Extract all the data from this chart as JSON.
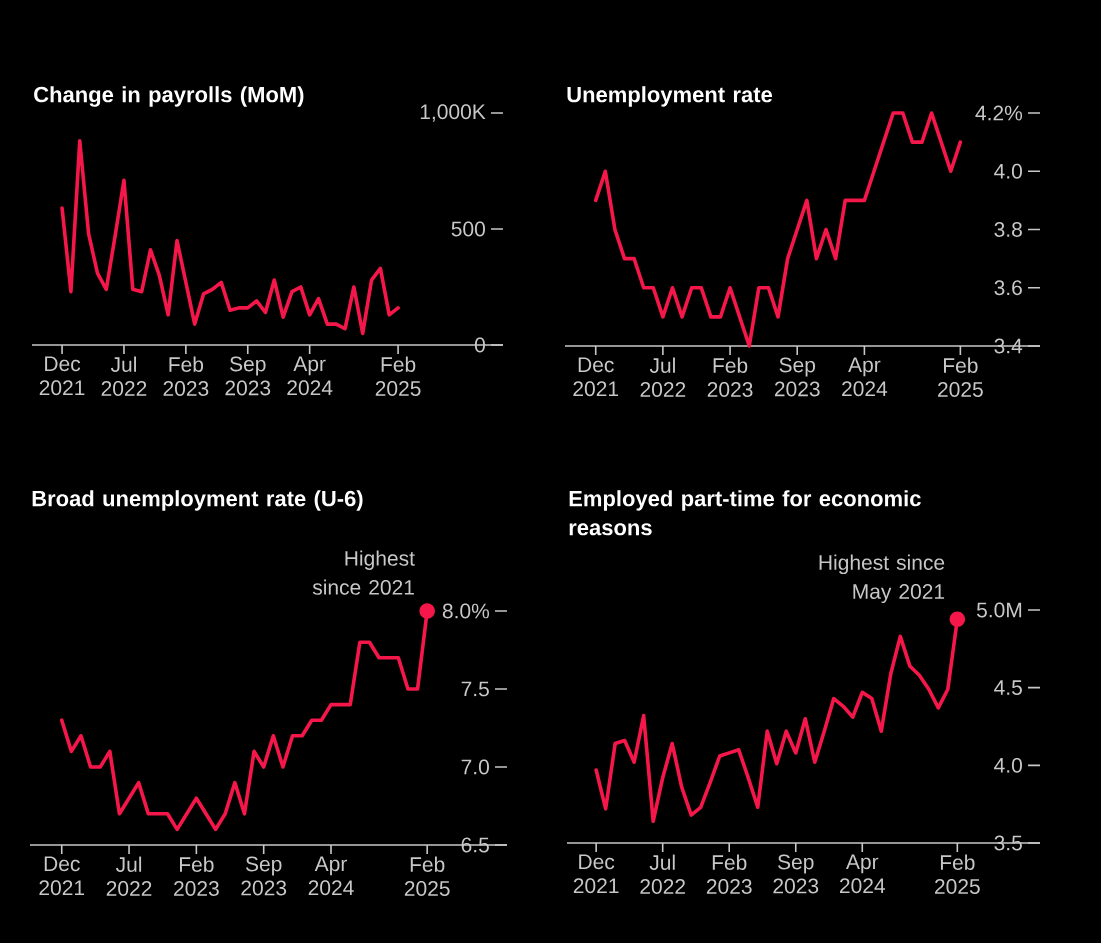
{
  "chart_data": [
    {
      "type": "line",
      "title": "Change in payrolls (MoM)",
      "x": [
        "2021-12",
        "2022-01",
        "2022-02",
        "2022-03",
        "2022-04",
        "2022-05",
        "2022-06",
        "2022-07",
        "2022-08",
        "2022-09",
        "2022-10",
        "2022-11",
        "2022-12",
        "2023-01",
        "2023-02",
        "2023-03",
        "2023-04",
        "2023-05",
        "2023-06",
        "2023-07",
        "2023-08",
        "2023-09",
        "2023-10",
        "2023-11",
        "2023-12",
        "2024-01",
        "2024-02",
        "2024-03",
        "2024-04",
        "2024-05",
        "2024-06",
        "2024-07",
        "2024-08",
        "2024-09",
        "2024-10",
        "2024-11",
        "2024-12",
        "2025-01",
        "2025-02"
      ],
      "series": [
        {
          "color": "#f5174a",
          "values": [
            590,
            230,
            880,
            480,
            310,
            240,
            470,
            710,
            240,
            230,
            410,
            300,
            130,
            450,
            270,
            90,
            220,
            240,
            270,
            150,
            160,
            160,
            190,
            140,
            280,
            120,
            230,
            250,
            130,
            200,
            90,
            90,
            70,
            250,
            50,
            280,
            330,
            130,
            160
          ]
        }
      ],
      "xlim": [
        "2021-08-19",
        "2026-01-27"
      ],
      "ylim": [
        0,
        1000
      ],
      "xticks": [
        {
          "value": "2021-12",
          "label": "Dec 2021"
        },
        {
          "value": "2022-07",
          "label": "Jul 2022"
        },
        {
          "value": "2023-02",
          "label": "Feb 2023"
        },
        {
          "value": "2023-09",
          "label": "Sep 2023"
        },
        {
          "value": "2024-04",
          "label": "Apr 2024"
        },
        {
          "value": "2025-02",
          "label": "Feb 2025"
        }
      ],
      "yticks": [
        0,
        500,
        {
          "value": 1000,
          "label": "1,000K"
        }
      ]
    },
    {
      "type": "line",
      "title": "Unemployment rate",
      "x": [
        "2021-12",
        "2022-01",
        "2022-02",
        "2022-03",
        "2022-04",
        "2022-05",
        "2022-06",
        "2022-07",
        "2022-08",
        "2022-09",
        "2022-10",
        "2022-11",
        "2022-12",
        "2023-01",
        "2023-02",
        "2023-03",
        "2023-04",
        "2023-05",
        "2023-06",
        "2023-07",
        "2023-08",
        "2023-09",
        "2023-10",
        "2023-11",
        "2023-12",
        "2024-01",
        "2024-02",
        "2024-03",
        "2024-04",
        "2024-05",
        "2024-06",
        "2024-07",
        "2024-08",
        "2024-09",
        "2024-10",
        "2024-11",
        "2024-12",
        "2025-01",
        "2025-02"
      ],
      "series": [
        {
          "color": "#f5174a",
          "values": [
            3.9,
            4.0,
            3.8,
            3.7,
            3.7,
            3.6,
            3.6,
            3.5,
            3.6,
            3.5,
            3.6,
            3.6,
            3.5,
            3.5,
            3.6,
            3.5,
            3.4,
            3.6,
            3.6,
            3.5,
            3.7,
            3.8,
            3.9,
            3.7,
            3.8,
            3.7,
            3.9,
            3.9,
            3.9,
            4.0,
            4.1,
            4.2,
            4.2,
            4.1,
            4.1,
            4.2,
            4.1,
            4.0,
            4.1
          ]
        }
      ],
      "xlim": [
        "2021-08-25",
        "2025-10-10"
      ],
      "ylim": [
        3.4,
        4.2
      ],
      "xticks": [
        {
          "value": "2021-12",
          "label": "Dec 2021"
        },
        {
          "value": "2022-07",
          "label": "Jul 2022"
        },
        {
          "value": "2023-02",
          "label": "Feb 2023"
        },
        {
          "value": "2023-09",
          "label": "Sep 2023"
        },
        {
          "value": "2024-04",
          "label": "Apr 2024"
        },
        {
          "value": "2025-02",
          "label": "Feb 2025"
        }
      ],
      "yticks": [
        {
          "value": 3.4,
          "label": "3.4"
        },
        {
          "value": 3.6,
          "label": "3.6"
        },
        {
          "value": 3.8,
          "label": "3.8"
        },
        {
          "value": 4.0,
          "label": "4.0"
        },
        {
          "value": 4.2,
          "label": "4.2%"
        }
      ]
    },
    {
      "type": "line",
      "title": "Broad unemployment rate (U-6)",
      "x": [
        "2021-12",
        "2022-01",
        "2022-02",
        "2022-03",
        "2022-04",
        "2022-05",
        "2022-06",
        "2022-07",
        "2022-08",
        "2022-09",
        "2022-10",
        "2022-11",
        "2022-12",
        "2023-01",
        "2023-02",
        "2023-03",
        "2023-04",
        "2023-05",
        "2023-06",
        "2023-07",
        "2023-08",
        "2023-09",
        "2023-10",
        "2023-11",
        "2023-12",
        "2024-01",
        "2024-02",
        "2024-03",
        "2024-04",
        "2024-05",
        "2024-06",
        "2024-07",
        "2024-08",
        "2024-09",
        "2024-10",
        "2024-11",
        "2024-12",
        "2025-01",
        "2025-02"
      ],
      "series": [
        {
          "color": "#f5174a",
          "values": [
            7.3,
            7.1,
            7.2,
            7.0,
            7.0,
            7.1,
            6.7,
            6.8,
            6.9,
            6.7,
            6.7,
            6.7,
            6.6,
            6.7,
            6.8,
            6.7,
            6.6,
            6.7,
            6.9,
            6.7,
            7.1,
            7.0,
            7.2,
            7.0,
            7.2,
            7.2,
            7.3,
            7.3,
            7.4,
            7.4,
            7.4,
            7.8,
            7.8,
            7.7,
            7.7,
            7.7,
            7.5,
            7.5,
            8.0
          ]
        },
        {
          "type": "scatter",
          "color": "#f5174a",
          "marker": "circle",
          "x": [
            "2025-02"
          ],
          "values": [
            8.0
          ]
        }
      ],
      "xlim": [
        "2021-08-22",
        "2025-10-10"
      ],
      "ylim": [
        6.5,
        8.0
      ],
      "xticks": [
        {
          "value": "2021-12",
          "label": "Dec 2021"
        },
        {
          "value": "2022-07",
          "label": "Jul 2022"
        },
        {
          "value": "2023-02",
          "label": "Feb 2023"
        },
        {
          "value": "2023-09",
          "label": "Sep 2023"
        },
        {
          "value": "2024-04",
          "label": "Apr 2024"
        },
        {
          "value": "2025-02",
          "label": "Feb 2025"
        }
      ],
      "yticks": [
        {
          "value": 6.5,
          "label": "6.5"
        },
        {
          "value": 7.0,
          "label": "7.0"
        },
        {
          "value": 7.5,
          "label": "7.5"
        },
        {
          "value": 8.0,
          "label": "8.0%"
        }
      ],
      "annotations": [
        {
          "text": "Highest since 2021",
          "x": "2025-02",
          "y": 8.0
        }
      ]
    },
    {
      "type": "line",
      "title": "Employed part-time for economic reasons",
      "x": [
        "2021-12",
        "2022-01",
        "2022-02",
        "2022-03",
        "2022-04",
        "2022-05",
        "2022-06",
        "2022-07",
        "2022-08",
        "2022-09",
        "2022-10",
        "2022-11",
        "2022-12",
        "2023-01",
        "2023-02",
        "2023-03",
        "2023-04",
        "2023-05",
        "2023-06",
        "2023-07",
        "2023-08",
        "2023-09",
        "2023-10",
        "2023-11",
        "2023-12",
        "2024-01",
        "2024-02",
        "2024-03",
        "2024-04",
        "2024-05",
        "2024-06",
        "2024-07",
        "2024-08",
        "2024-09",
        "2024-10",
        "2024-11",
        "2024-12",
        "2025-01",
        "2025-02"
      ],
      "series": [
        {
          "color": "#f5174a",
          "values": [
            3.97,
            3.72,
            4.14,
            4.16,
            4.02,
            4.32,
            3.64,
            3.92,
            4.14,
            3.86,
            3.68,
            3.73,
            3.89,
            4.06,
            4.08,
            4.1,
            3.92,
            3.73,
            4.22,
            4.01,
            4.22,
            4.08,
            4.3,
            4.02,
            4.22,
            4.43,
            4.38,
            4.31,
            4.47,
            4.43,
            4.22,
            4.59,
            4.83,
            4.64,
            4.58,
            4.49,
            4.37,
            4.49,
            4.94
          ]
        },
        {
          "type": "scatter",
          "color": "#f5174a",
          "marker": "circle",
          "x": [
            "2025-02"
          ],
          "values": [
            4.94
          ]
        }
      ],
      "xlim": [
        "2021-08-29",
        "2025-10-22"
      ],
      "ylim": [
        3.5,
        5.0
      ],
      "xticks": [
        {
          "value": "2021-12",
          "label": "Dec 2021"
        },
        {
          "value": "2022-07",
          "label": "Jul 2022"
        },
        {
          "value": "2023-02",
          "label": "Feb 2023"
        },
        {
          "value": "2023-09",
          "label": "Sep 2023"
        },
        {
          "value": "2024-04",
          "label": "Apr 2024"
        },
        {
          "value": "2025-02",
          "label": "Feb 2025"
        }
      ],
      "yticks": [
        {
          "value": 3.5,
          "label": "3.5"
        },
        {
          "value": 4.0,
          "label": "4.0"
        },
        {
          "value": 4.5,
          "label": "4.5"
        },
        {
          "value": 5.0,
          "label": "5.0M"
        }
      ],
      "annotations": [
        {
          "text": "Highest since May 2021",
          "x": "2025-02",
          "y": 4.94
        }
      ]
    }
  ]
}
